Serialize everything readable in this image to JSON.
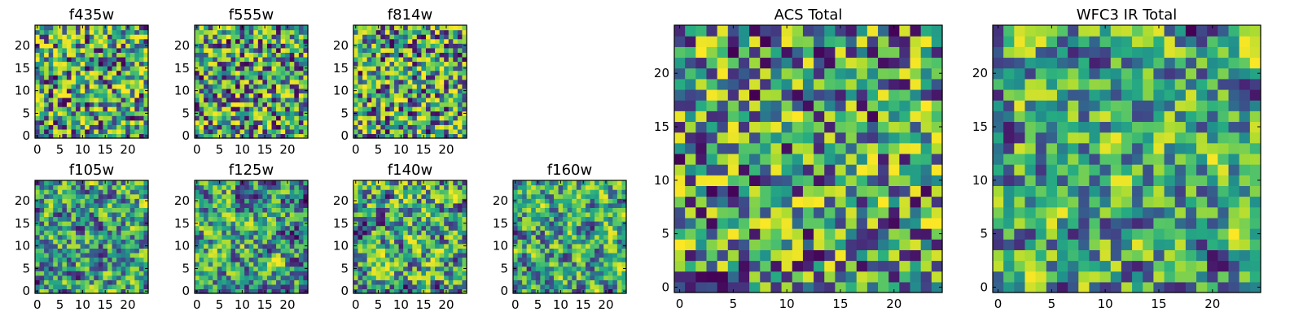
{
  "figure": {
    "colormap": "viridis",
    "colors": {
      "low": "#440154",
      "mid": "#21918c",
      "high": "#fde725",
      "frame": "#000000"
    }
  },
  "chart_data": [
    {
      "type": "heatmap",
      "title": "f435w",
      "grid_size": 25,
      "seed": 11,
      "smooth": 0,
      "skew": 1.55,
      "axis_ticks": [
        0,
        5,
        10,
        15,
        20
      ],
      "xlim": [
        0,
        24
      ],
      "ylim": [
        0,
        24
      ],
      "colormap": "viridis",
      "grid": false
    },
    {
      "type": "heatmap",
      "title": "f555w",
      "grid_size": 25,
      "seed": 23,
      "smooth": 0,
      "skew": 1.45,
      "axis_ticks": [
        0,
        5,
        10,
        15,
        20
      ],
      "xlim": [
        0,
        24
      ],
      "ylim": [
        0,
        24
      ],
      "colormap": "viridis",
      "grid": false
    },
    {
      "type": "heatmap",
      "title": "f814w",
      "grid_size": 25,
      "seed": 37,
      "smooth": 0,
      "skew": 1.55,
      "axis_ticks": [
        0,
        5,
        10,
        15,
        20
      ],
      "xlim": [
        0,
        24
      ],
      "ylim": [
        0,
        24
      ],
      "colormap": "viridis",
      "grid": false
    },
    {
      "type": "heatmap",
      "title": "f105w",
      "grid_size": 25,
      "seed": 41,
      "smooth": 1,
      "skew": 1.35,
      "axis_ticks": [
        0,
        5,
        10,
        15,
        20
      ],
      "xlim": [
        0,
        24
      ],
      "ylim": [
        0,
        24
      ],
      "colormap": "viridis",
      "grid": false
    },
    {
      "type": "heatmap",
      "title": "f125w",
      "grid_size": 25,
      "seed": 53,
      "smooth": 1,
      "skew": 1.4,
      "axis_ticks": [
        0,
        5,
        10,
        15,
        20
      ],
      "xlim": [
        0,
        24
      ],
      "ylim": [
        0,
        24
      ],
      "colormap": "viridis",
      "grid": false
    },
    {
      "type": "heatmap",
      "title": "f140w",
      "grid_size": 25,
      "seed": 67,
      "smooth": 1,
      "skew": 1.45,
      "axis_ticks": [
        0,
        5,
        10,
        15,
        20
      ],
      "xlim": [
        0,
        24
      ],
      "ylim": [
        0,
        24
      ],
      "colormap": "viridis",
      "grid": false
    },
    {
      "type": "heatmap",
      "title": "f160w",
      "grid_size": 25,
      "seed": 79,
      "smooth": 1,
      "skew": 1.4,
      "axis_ticks": [
        0,
        5,
        10,
        15,
        20
      ],
      "xlim": [
        0,
        24
      ],
      "ylim": [
        0,
        24
      ],
      "colormap": "viridis",
      "grid": false
    },
    {
      "type": "heatmap",
      "title": "ACS Total",
      "grid_size": 25,
      "seed": 97,
      "smooth": 0,
      "skew": 1.25,
      "axis_ticks": [
        0,
        5,
        10,
        15,
        20
      ],
      "xlim": [
        0,
        24
      ],
      "ylim": [
        0,
        24
      ],
      "colormap": "viridis",
      "grid": false
    },
    {
      "type": "heatmap",
      "title": "WFC3 IR Total",
      "grid_size": 25,
      "seed": 113,
      "smooth": 1,
      "skew": 1.25,
      "axis_ticks": [
        0,
        5,
        10,
        15,
        20
      ],
      "xlim": [
        0,
        24
      ],
      "ylim": [
        0,
        24
      ],
      "colormap": "viridis",
      "grid": false
    }
  ]
}
